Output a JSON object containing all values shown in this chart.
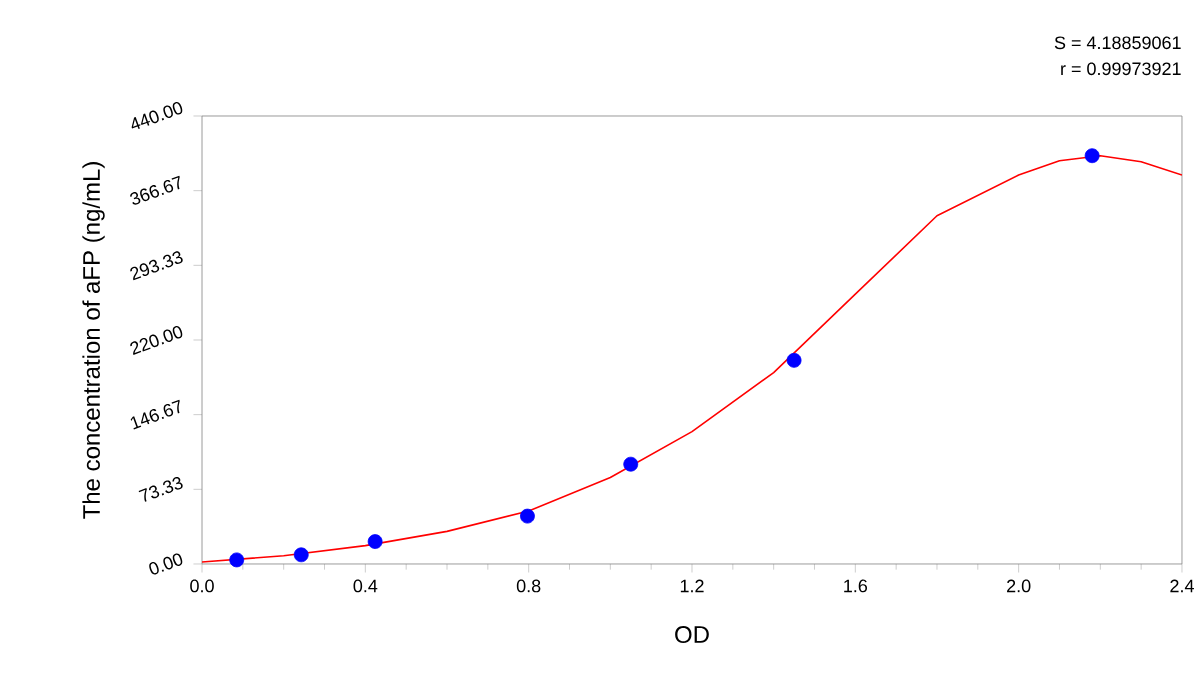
{
  "chart_data": {
    "type": "scatter",
    "xlabel": "OD",
    "ylabel": "The concentration of aFP (ng/mL)",
    "annotations": [
      "S = 4.18859061",
      "r = 0.99973921"
    ],
    "xlim": [
      0,
      2.4
    ],
    "ylim": [
      0,
      440
    ],
    "xticks": [
      {
        "value": 0,
        "label": "0.0"
      },
      {
        "value": 0.4,
        "label": "0.4"
      },
      {
        "value": 0.8,
        "label": "0.8"
      },
      {
        "value": 1.2,
        "label": "1.2"
      },
      {
        "value": 1.6,
        "label": "1.6"
      },
      {
        "value": 2.0,
        "label": "2.0"
      },
      {
        "value": 2.4,
        "label": "2.4"
      }
    ],
    "yticks": [
      {
        "value": 0,
        "label": "0.00"
      },
      {
        "value": 73.33,
        "label": "73.33"
      },
      {
        "value": 146.67,
        "label": "146.67"
      },
      {
        "value": 220,
        "label": "220.00"
      },
      {
        "value": 293.33,
        "label": "293.33"
      },
      {
        "value": 366.67,
        "label": "366.67"
      },
      {
        "value": 440,
        "label": "440.00"
      }
    ],
    "grid": false,
    "series": [
      {
        "color": "#0000ff",
        "marker": "circle",
        "x": [
          0.085,
          0.243,
          0.424,
          0.797,
          1.05,
          1.45,
          2.18
        ],
        "values": [
          4,
          9,
          22,
          47,
          98,
          200,
          401
        ]
      },
      {
        "type": "line",
        "color": "#ff0000",
        "marker": "none",
        "line_style": "solid",
        "x": [
          0,
          0.2,
          0.4,
          0.6,
          0.8,
          1.0,
          1.2,
          1.4,
          1.6,
          1.8,
          2.0,
          2.1,
          2.2,
          2.3,
          2.4
        ],
        "values": [
          2,
          8,
          18,
          32,
          52,
          85,
          130,
          188,
          265,
          342,
          382,
          396,
          401,
          395,
          382
        ]
      }
    ]
  }
}
